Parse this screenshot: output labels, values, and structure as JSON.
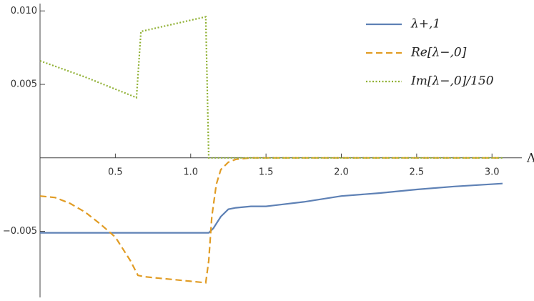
{
  "chart_data": {
    "type": "line",
    "x_label": "Λ",
    "xlim": [
      0,
      3.07
    ],
    "ylim": [
      -0.0095,
      0.0105
    ],
    "xticks": [
      0.5,
      {
        "value": 1,
        "label": "1.0"
      },
      1.5,
      {
        "value": 2,
        "label": "2.0"
      },
      2.5,
      {
        "value": 3,
        "label": "3.0"
      }
    ],
    "yticks": [
      {
        "value": -0.005,
        "label": "−0.005"
      },
      0.005,
      {
        "value": 0.01,
        "label": "0.010"
      }
    ],
    "legend": "top-right",
    "series": [
      {
        "name": "λ+,1",
        "color": "#5e81b5",
        "dash": "solid",
        "x": [
          0,
          0.5,
          1.0,
          1.12,
          1.15,
          1.2,
          1.25,
          1.3,
          1.4,
          1.5,
          1.75,
          2.0,
          2.25,
          2.5,
          2.75,
          3.07
        ],
        "values": [
          -0.0051,
          -0.0051,
          -0.0051,
          -0.0051,
          -0.0048,
          -0.004,
          -0.0035,
          -0.0034,
          -0.0033,
          -0.0033,
          -0.003,
          -0.0026,
          -0.0024,
          -0.00215,
          -0.00195,
          -0.00175
        ]
      },
      {
        "name": "Re[λ−,0]",
        "color": "#e19c24",
        "dash": "dashed",
        "x": [
          0,
          0.1,
          0.2,
          0.3,
          0.4,
          0.5,
          0.6,
          0.65,
          0.7,
          0.8,
          0.9,
          1.0,
          1.1,
          1.12,
          1.14,
          1.17,
          1.2,
          1.25,
          1.3,
          1.4,
          1.5,
          2,
          3.07
        ],
        "values": [
          -0.0026,
          -0.0027,
          -0.0031,
          -0.0037,
          -0.0045,
          -0.0054,
          -0.007,
          -0.008,
          -0.0081,
          -0.0082,
          -0.0083,
          -0.0084,
          -0.0085,
          -0.007,
          -0.004,
          -0.0018,
          -0.0008,
          -0.0003,
          -0.0001,
          0,
          0,
          0,
          0
        ]
      },
      {
        "name": "Im[λ−,0]/150",
        "color": "#8fb032",
        "dash": "dotted",
        "x": [
          0,
          0.3,
          0.64,
          0.67,
          1.1,
          1.12,
          3.07
        ],
        "values": [
          0.0066,
          0.0055,
          0.0041,
          0.0086,
          0.0096,
          0,
          0
        ]
      }
    ]
  }
}
